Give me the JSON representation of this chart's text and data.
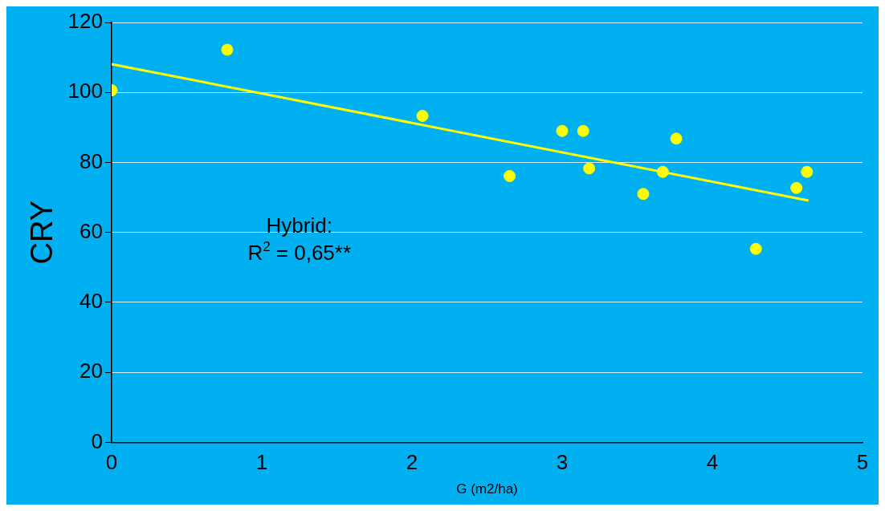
{
  "chart_data": {
    "type": "scatter",
    "xlabel": "G (m2/ha)",
    "ylabel": "CRY",
    "annotations": [
      "Hybrid:",
      "R$^{2}$ = 0,65**"
    ],
    "series": [
      {
        "color": "#ffff00",
        "marker": "circle",
        "x": [
          0,
          0.77,
          2.07,
          2.65,
          3.0,
          3.14,
          3.18,
          3.54,
          3.67,
          3.76,
          4.29,
          4.56,
          4.63
        ],
        "values": [
          100.6,
          112.2,
          93.3,
          76.1,
          89.0,
          89.0,
          78.3,
          71.0,
          77.3,
          86.8,
          55.3,
          72.7,
          77.3
        ]
      },
      {
        "type": "line",
        "color": "#ffff00",
        "marker": "none",
        "line_style": "solid",
        "x": [
          0,
          4.64
        ],
        "values": [
          108.1,
          69.1
        ]
      }
    ],
    "xlim": [
      0,
      5
    ],
    "xticks": [
      0,
      1,
      2,
      3,
      4,
      5
    ],
    "ylim": [
      0,
      120
    ],
    "yticks": [
      0,
      20,
      40,
      60,
      80,
      100,
      120
    ],
    "grid": "y",
    "legend": false
  }
}
